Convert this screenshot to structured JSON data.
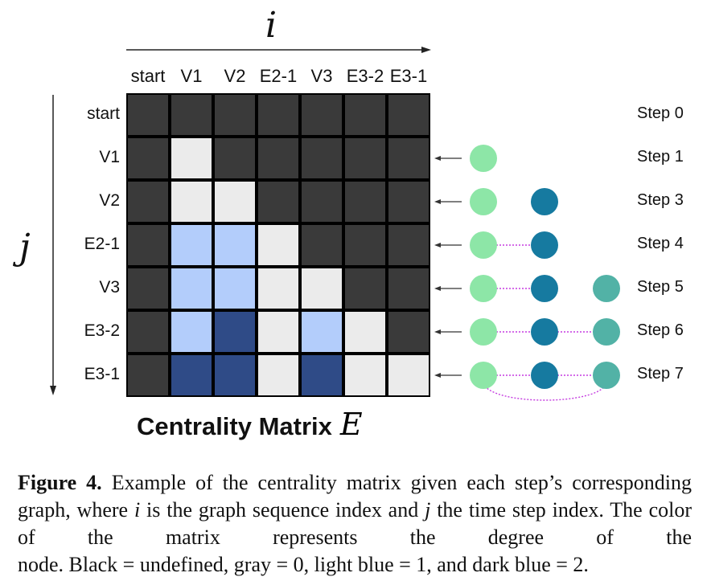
{
  "axis": {
    "i_label": "i",
    "j_label": "j"
  },
  "columns": [
    "start",
    "V1",
    "V2",
    "E2-1",
    "V3",
    "E3-2",
    "E3-1"
  ],
  "rows": [
    "start",
    "V1",
    "V2",
    "E2-1",
    "V3",
    "E3-2",
    "E3-1"
  ],
  "matrix": [
    [
      -1,
      -1,
      -1,
      -1,
      -1,
      -1,
      -1
    ],
    [
      -1,
      0,
      -1,
      -1,
      -1,
      -1,
      -1
    ],
    [
      -1,
      0,
      0,
      -1,
      -1,
      -1,
      -1
    ],
    [
      -1,
      1,
      1,
      0,
      -1,
      -1,
      -1
    ],
    [
      -1,
      1,
      1,
      0,
      0,
      -1,
      -1
    ],
    [
      -1,
      1,
      2,
      0,
      1,
      0,
      -1
    ],
    [
      -1,
      2,
      2,
      0,
      2,
      0,
      0
    ]
  ],
  "colors": {
    "undefined": "#3a3a3a",
    "degree_0": "#ebebeb",
    "degree_1": "#b3cdfb",
    "degree_2": "#2f4b87",
    "node_v1": "#8de6a7",
    "node_v2": "#167aa0",
    "node_v3": "#52b2a6",
    "edge": "#c53ce0"
  },
  "steps": [
    {
      "label": "Step 0",
      "nodes": [],
      "edges": []
    },
    {
      "label": "Step 1",
      "nodes": [
        "v1"
      ],
      "edges": []
    },
    {
      "label": "Step 3",
      "nodes": [
        "v1",
        "v2"
      ],
      "edges": []
    },
    {
      "label": "Step 4",
      "nodes": [
        "v1",
        "v2"
      ],
      "edges": [
        "v1-v2"
      ]
    },
    {
      "label": "Step 5",
      "nodes": [
        "v1",
        "v2",
        "v3"
      ],
      "edges": [
        "v1-v2"
      ]
    },
    {
      "label": "Step 6",
      "nodes": [
        "v1",
        "v2",
        "v3"
      ],
      "edges": [
        "v1-v2",
        "v2-v3"
      ]
    },
    {
      "label": "Step 7",
      "nodes": [
        "v1",
        "v2",
        "v3"
      ],
      "edges": [
        "v1-v2",
        "v2-v3",
        "v1-v3"
      ]
    }
  ],
  "title": {
    "text": "Centrality Matrix",
    "symbol": "E"
  },
  "caption": {
    "label": "Figure 4.",
    "part1": " Example of the centrality matrix given each step’s corresponding graph, where ",
    "i": "i",
    "part2": " is the graph sequence index and ",
    "j": "j",
    "part3": " the time step index. The color of the matrix represents the degree of the",
    "line4": "node. Black = undefined, gray = 0, light blue = 1, and dark blue = 2."
  }
}
